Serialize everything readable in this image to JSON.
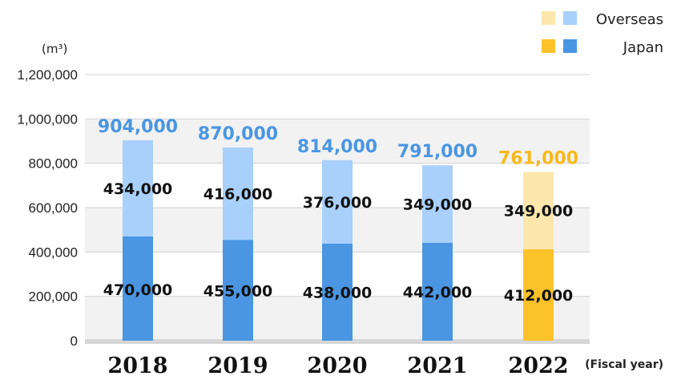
{
  "chart_data": {
    "type": "bar",
    "stacked": true,
    "unit_label": "(m³)",
    "xlabel": "(Fiscal year)",
    "ylim": [
      0,
      1200000
    ],
    "yticks": [
      0,
      200000,
      400000,
      600000,
      800000,
      1000000,
      1200000
    ],
    "ytick_labels": [
      "0",
      "200,000",
      "400,000",
      "600,000",
      "800,000",
      "1,000,000",
      "1,200,000"
    ],
    "categories": [
      "2018",
      "2019",
      "2020",
      "2021",
      "2022"
    ],
    "series": [
      {
        "name": "Japan",
        "values": [
          470000,
          455000,
          438000,
          442000,
          412000
        ],
        "labels": [
          "470,000",
          "455,000",
          "438,000",
          "442,000",
          "412,000"
        ]
      },
      {
        "name": "Overseas",
        "values": [
          434000,
          416000,
          376000,
          349000,
          349000
        ],
        "labels": [
          "434,000",
          "416,000",
          "376,000",
          "349,000",
          "349,000"
        ]
      }
    ],
    "totals": [
      904000,
      870000,
      814000,
      791000,
      761000
    ],
    "total_labels": [
      "904,000",
      "870,000",
      "814,000",
      "791,000",
      "761,000"
    ],
    "highlight_index": 4,
    "legend": {
      "position": "top-right",
      "entries": [
        "Overseas",
        "Japan"
      ]
    },
    "colors": {
      "japan": "#4a96e3",
      "overseas": "#a8d0fa",
      "japan_highlight": "#fbc22a",
      "overseas_highlight": "#fde7ac",
      "total_text": "#4a96e3",
      "total_text_highlight": "#f7b91c",
      "band": "#f2f2f2",
      "grid": "#d2d2d2",
      "baseline": "#d6d6d6"
    }
  }
}
